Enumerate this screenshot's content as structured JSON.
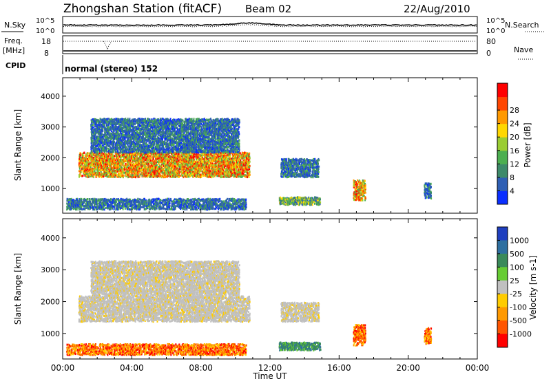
{
  "header": {
    "station": "Zhongshan Station (fitACF)",
    "beam": "Beam 02",
    "date": "22/Aug/2010"
  },
  "top_strip": {
    "nsky_label": "N.Sky",
    "nsearch_label": "N.Search",
    "nsky_ticks": [
      "10^5",
      "10^0"
    ],
    "nsearch_ticks": [
      "10^5",
      "10^0"
    ],
    "freq_label": "Freq.",
    "freq_unit": "[MHz]",
    "freq_ticks": [
      "18",
      "8"
    ],
    "nave_label": "Nave",
    "nave_ticks": [
      "80",
      "0"
    ],
    "cpid_label": "CPID",
    "cpid_text": "normal (stereo) 152"
  },
  "chart_data": [
    {
      "type": "heatmap",
      "name": "power",
      "ylabel": "Slant Range [km]",
      "xlabel": "Time UT",
      "x_ticks": [
        "00:00",
        "04:00",
        "08:00",
        "12:00",
        "16:00",
        "20:00",
        "00:00"
      ],
      "x_range_hours": [
        0,
        24
      ],
      "y_ticks": [
        1000,
        2000,
        3000,
        4000
      ],
      "ylim": [
        200,
        4600
      ],
      "colorbar": {
        "label": "Power [dB]",
        "ticks": [
          "4",
          "8",
          "12",
          "16",
          "20",
          "24",
          "28"
        ],
        "colors": [
          "#0a2eff",
          "#2e5fb4",
          "#3d8a6a",
          "#4caf50",
          "#9acd32",
          "#ffd700",
          "#ff9900",
          "#ff4500",
          "#ff0000"
        ]
      },
      "clusters": [
        {
          "t0": 0.9,
          "t1": 10.8,
          "r0": 1400,
          "r1": 2200,
          "level": "high"
        },
        {
          "t0": 1.6,
          "t1": 10.2,
          "r0": 2200,
          "r1": 3300,
          "level": "low"
        },
        {
          "t0": 12.6,
          "t1": 14.8,
          "r0": 1400,
          "r1": 2000,
          "level": "low"
        },
        {
          "t0": 12.5,
          "t1": 14.9,
          "r0": 500,
          "r1": 750,
          "level": "mid"
        },
        {
          "t0": 16.8,
          "t1": 17.5,
          "r0": 650,
          "r1": 1300,
          "level": "high"
        },
        {
          "t0": 20.9,
          "t1": 21.3,
          "r0": 700,
          "r1": 1200,
          "level": "low"
        },
        {
          "t0": 0.2,
          "t1": 10.6,
          "r0": 350,
          "r1": 700,
          "level": "low"
        }
      ]
    },
    {
      "type": "heatmap",
      "name": "velocity",
      "ylabel": "Slant Range [km]",
      "xlabel": "Time UT",
      "x_ticks": [
        "00:00",
        "04:00",
        "08:00",
        "12:00",
        "16:00",
        "20:00",
        "00:00"
      ],
      "x_range_hours": [
        0,
        24
      ],
      "y_ticks": [
        1000,
        2000,
        3000,
        4000
      ],
      "ylim": [
        200,
        4600
      ],
      "colorbar": {
        "label": "Velocity [m s-1]",
        "ticks": [
          "1000",
          "500",
          "100",
          "25",
          "-25",
          "-100",
          "-500",
          "-1000"
        ],
        "colors": [
          "#1f3fbf",
          "#2e6fa0",
          "#3a8a5a",
          "#66cc33",
          "#c0c0c0",
          "#ffcc00",
          "#ff9900",
          "#ff5500",
          "#ff0000"
        ]
      },
      "clusters": [
        {
          "t0": 0.9,
          "t1": 10.8,
          "r0": 1400,
          "r1": 2200,
          "level": "ground"
        },
        {
          "t0": 1.6,
          "t1": 10.2,
          "r0": 2200,
          "r1": 3300,
          "level": "ground"
        },
        {
          "t0": 12.6,
          "t1": 14.8,
          "r0": 1400,
          "r1": 2000,
          "level": "ground"
        },
        {
          "t0": 12.5,
          "t1": 14.9,
          "r0": 500,
          "r1": 750,
          "level": "toward"
        },
        {
          "t0": 16.8,
          "t1": 17.5,
          "r0": 650,
          "r1": 1300,
          "level": "away"
        },
        {
          "t0": 20.9,
          "t1": 21.3,
          "r0": 700,
          "r1": 1200,
          "level": "away"
        },
        {
          "t0": 0.2,
          "t1": 10.6,
          "r0": 350,
          "r1": 700,
          "level": "away"
        }
      ]
    }
  ]
}
